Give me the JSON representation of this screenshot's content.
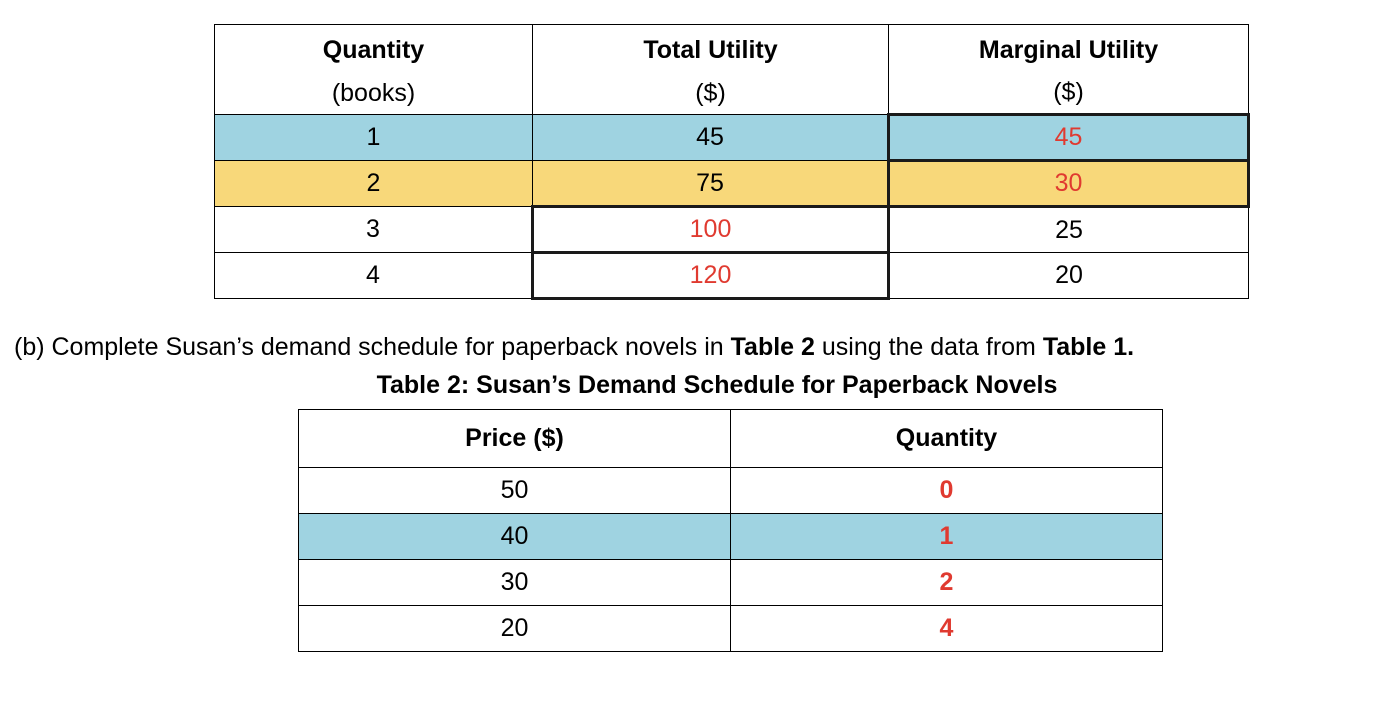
{
  "table1": {
    "headers": [
      {
        "line1": "Quantity",
        "line2": "(books)"
      },
      {
        "line1": "Total Utility",
        "line2": "($)"
      },
      {
        "line1": "Marginal Utility",
        "line2": "($)"
      }
    ],
    "rows": [
      {
        "quantity": "1",
        "total_utility": "45",
        "marginal_utility": "45"
      },
      {
        "quantity": "2",
        "total_utility": "75",
        "marginal_utility": "30"
      },
      {
        "quantity": "3",
        "total_utility": "100",
        "marginal_utility": "25"
      },
      {
        "quantity": "4",
        "total_utility": "120",
        "marginal_utility": "20"
      }
    ],
    "colors": {
      "row1": "#9fd3e1",
      "row2": "#f8d87a",
      "answer_text": "#e03a30"
    }
  },
  "instruction": {
    "prefix": "(b)  Complete Susan’s demand schedule for paperback novels in ",
    "table2_ref": "Table 2",
    "middle": " using the data from ",
    "table1_ref": "Table 1."
  },
  "table2": {
    "title": "Table 2: Susan’s Demand Schedule for Paperback Novels",
    "headers": [
      "Price ($)",
      "Quantity"
    ],
    "rows": [
      {
        "price": "50",
        "quantity": "0"
      },
      {
        "price": "40",
        "quantity": "1"
      },
      {
        "price": "30",
        "quantity": "2"
      },
      {
        "price": "20",
        "quantity": "4"
      }
    ],
    "colors": {
      "row2": "#9fd3e1",
      "answer_text": "#e03a30"
    }
  }
}
